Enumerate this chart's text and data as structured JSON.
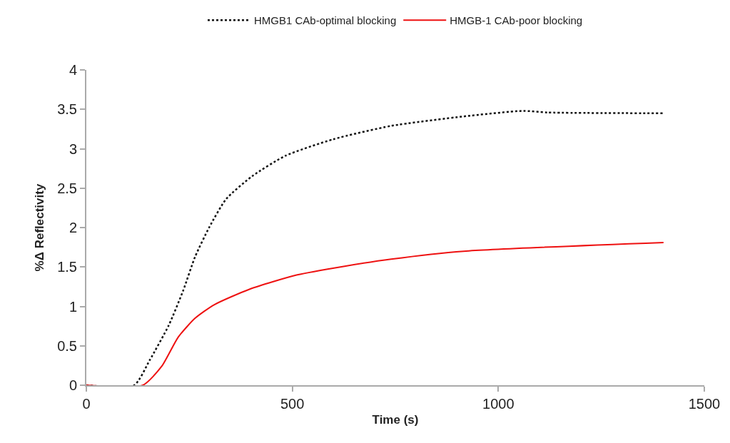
{
  "chart_data": {
    "type": "line",
    "xlabel": "Time (s)",
    "ylabel": "%Δ Reflectivity",
    "xlim": [
      0,
      1500
    ],
    "xticks": [
      0,
      500,
      1000,
      1500
    ],
    "ylim": [
      0,
      4
    ],
    "yticks": [
      0,
      0.5,
      1,
      1.5,
      2,
      2.5,
      3,
      3.5,
      4
    ],
    "grid": false,
    "legend": "top",
    "marker": "none",
    "series": [
      {
        "name": "HMGB1 CAb-optimal blocking",
        "color": "#111111",
        "line_style": "dotted",
        "x": [
          0,
          116,
          154,
          200,
          235,
          264,
          298,
          339,
          402,
          483,
          599,
          740,
          916,
          1060,
          1119,
          1401
        ],
        "values": [
          0,
          0,
          0.32,
          0.76,
          1.2,
          1.63,
          2.0,
          2.36,
          2.65,
          2.91,
          3.12,
          3.29,
          3.41,
          3.48,
          3.46,
          3.45
        ]
      },
      {
        "name": "HMGB-1 CAb-poor blocking",
        "color": "#ee1111",
        "line_style": "solid",
        "x": [
          0,
          137,
          183,
          223,
          264,
          310,
          397,
          512,
          627,
          740,
          916,
          1401
        ],
        "values": [
          0,
          0,
          0.24,
          0.61,
          0.85,
          1.02,
          1.22,
          1.4,
          1.51,
          1.6,
          1.7,
          1.81
        ]
      }
    ]
  }
}
